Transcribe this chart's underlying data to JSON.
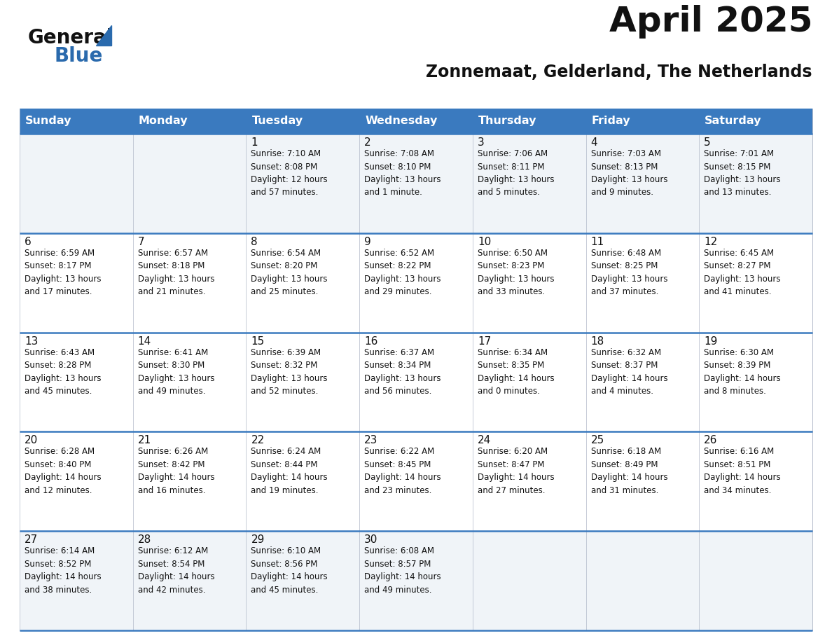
{
  "title": "April 2025",
  "subtitle": "Zonnemaat, Gelderland, The Netherlands",
  "header_color": "#3a7abf",
  "header_text_color": "#ffffff",
  "cell_bg_light": "#f0f4f8",
  "cell_bg_white": "#ffffff",
  "border_color": "#3a7abf",
  "cell_border_color": "#b0b8c8",
  "day_headers": [
    "Sunday",
    "Monday",
    "Tuesday",
    "Wednesday",
    "Thursday",
    "Friday",
    "Saturday"
  ],
  "week_bg": [
    "#f0f4f8",
    "#ffffff",
    "#ffffff",
    "#ffffff",
    "#f0f4f8"
  ],
  "weeks": [
    [
      {
        "day": "",
        "info": ""
      },
      {
        "day": "",
        "info": ""
      },
      {
        "day": "1",
        "info": "Sunrise: 7:10 AM\nSunset: 8:08 PM\nDaylight: 12 hours\nand 57 minutes."
      },
      {
        "day": "2",
        "info": "Sunrise: 7:08 AM\nSunset: 8:10 PM\nDaylight: 13 hours\nand 1 minute."
      },
      {
        "day": "3",
        "info": "Sunrise: 7:06 AM\nSunset: 8:11 PM\nDaylight: 13 hours\nand 5 minutes."
      },
      {
        "day": "4",
        "info": "Sunrise: 7:03 AM\nSunset: 8:13 PM\nDaylight: 13 hours\nand 9 minutes."
      },
      {
        "day": "5",
        "info": "Sunrise: 7:01 AM\nSunset: 8:15 PM\nDaylight: 13 hours\nand 13 minutes."
      }
    ],
    [
      {
        "day": "6",
        "info": "Sunrise: 6:59 AM\nSunset: 8:17 PM\nDaylight: 13 hours\nand 17 minutes."
      },
      {
        "day": "7",
        "info": "Sunrise: 6:57 AM\nSunset: 8:18 PM\nDaylight: 13 hours\nand 21 minutes."
      },
      {
        "day": "8",
        "info": "Sunrise: 6:54 AM\nSunset: 8:20 PM\nDaylight: 13 hours\nand 25 minutes."
      },
      {
        "day": "9",
        "info": "Sunrise: 6:52 AM\nSunset: 8:22 PM\nDaylight: 13 hours\nand 29 minutes."
      },
      {
        "day": "10",
        "info": "Sunrise: 6:50 AM\nSunset: 8:23 PM\nDaylight: 13 hours\nand 33 minutes."
      },
      {
        "day": "11",
        "info": "Sunrise: 6:48 AM\nSunset: 8:25 PM\nDaylight: 13 hours\nand 37 minutes."
      },
      {
        "day": "12",
        "info": "Sunrise: 6:45 AM\nSunset: 8:27 PM\nDaylight: 13 hours\nand 41 minutes."
      }
    ],
    [
      {
        "day": "13",
        "info": "Sunrise: 6:43 AM\nSunset: 8:28 PM\nDaylight: 13 hours\nand 45 minutes."
      },
      {
        "day": "14",
        "info": "Sunrise: 6:41 AM\nSunset: 8:30 PM\nDaylight: 13 hours\nand 49 minutes."
      },
      {
        "day": "15",
        "info": "Sunrise: 6:39 AM\nSunset: 8:32 PM\nDaylight: 13 hours\nand 52 minutes."
      },
      {
        "day": "16",
        "info": "Sunrise: 6:37 AM\nSunset: 8:34 PM\nDaylight: 13 hours\nand 56 minutes."
      },
      {
        "day": "17",
        "info": "Sunrise: 6:34 AM\nSunset: 8:35 PM\nDaylight: 14 hours\nand 0 minutes."
      },
      {
        "day": "18",
        "info": "Sunrise: 6:32 AM\nSunset: 8:37 PM\nDaylight: 14 hours\nand 4 minutes."
      },
      {
        "day": "19",
        "info": "Sunrise: 6:30 AM\nSunset: 8:39 PM\nDaylight: 14 hours\nand 8 minutes."
      }
    ],
    [
      {
        "day": "20",
        "info": "Sunrise: 6:28 AM\nSunset: 8:40 PM\nDaylight: 14 hours\nand 12 minutes."
      },
      {
        "day": "21",
        "info": "Sunrise: 6:26 AM\nSunset: 8:42 PM\nDaylight: 14 hours\nand 16 minutes."
      },
      {
        "day": "22",
        "info": "Sunrise: 6:24 AM\nSunset: 8:44 PM\nDaylight: 14 hours\nand 19 minutes."
      },
      {
        "day": "23",
        "info": "Sunrise: 6:22 AM\nSunset: 8:45 PM\nDaylight: 14 hours\nand 23 minutes."
      },
      {
        "day": "24",
        "info": "Sunrise: 6:20 AM\nSunset: 8:47 PM\nDaylight: 14 hours\nand 27 minutes."
      },
      {
        "day": "25",
        "info": "Sunrise: 6:18 AM\nSunset: 8:49 PM\nDaylight: 14 hours\nand 31 minutes."
      },
      {
        "day": "26",
        "info": "Sunrise: 6:16 AM\nSunset: 8:51 PM\nDaylight: 14 hours\nand 34 minutes."
      }
    ],
    [
      {
        "day": "27",
        "info": "Sunrise: 6:14 AM\nSunset: 8:52 PM\nDaylight: 14 hours\nand 38 minutes."
      },
      {
        "day": "28",
        "info": "Sunrise: 6:12 AM\nSunset: 8:54 PM\nDaylight: 14 hours\nand 42 minutes."
      },
      {
        "day": "29",
        "info": "Sunrise: 6:10 AM\nSunset: 8:56 PM\nDaylight: 14 hours\nand 45 minutes."
      },
      {
        "day": "30",
        "info": "Sunrise: 6:08 AM\nSunset: 8:57 PM\nDaylight: 14 hours\nand 49 minutes."
      },
      {
        "day": "",
        "info": ""
      },
      {
        "day": "",
        "info": ""
      },
      {
        "day": "",
        "info": ""
      }
    ]
  ],
  "logo_text_general": "General",
  "logo_text_blue": "Blue",
  "logo_color_general": "#111111",
  "logo_color_blue": "#2a6aad",
  "logo_triangle_color": "#2a6aad",
  "title_fontsize": 36,
  "subtitle_fontsize": 17,
  "header_fontsize": 11.5,
  "day_number_fontsize": 11,
  "info_fontsize": 8.5,
  "logo_fontsize_general": 20,
  "logo_fontsize_blue": 20
}
